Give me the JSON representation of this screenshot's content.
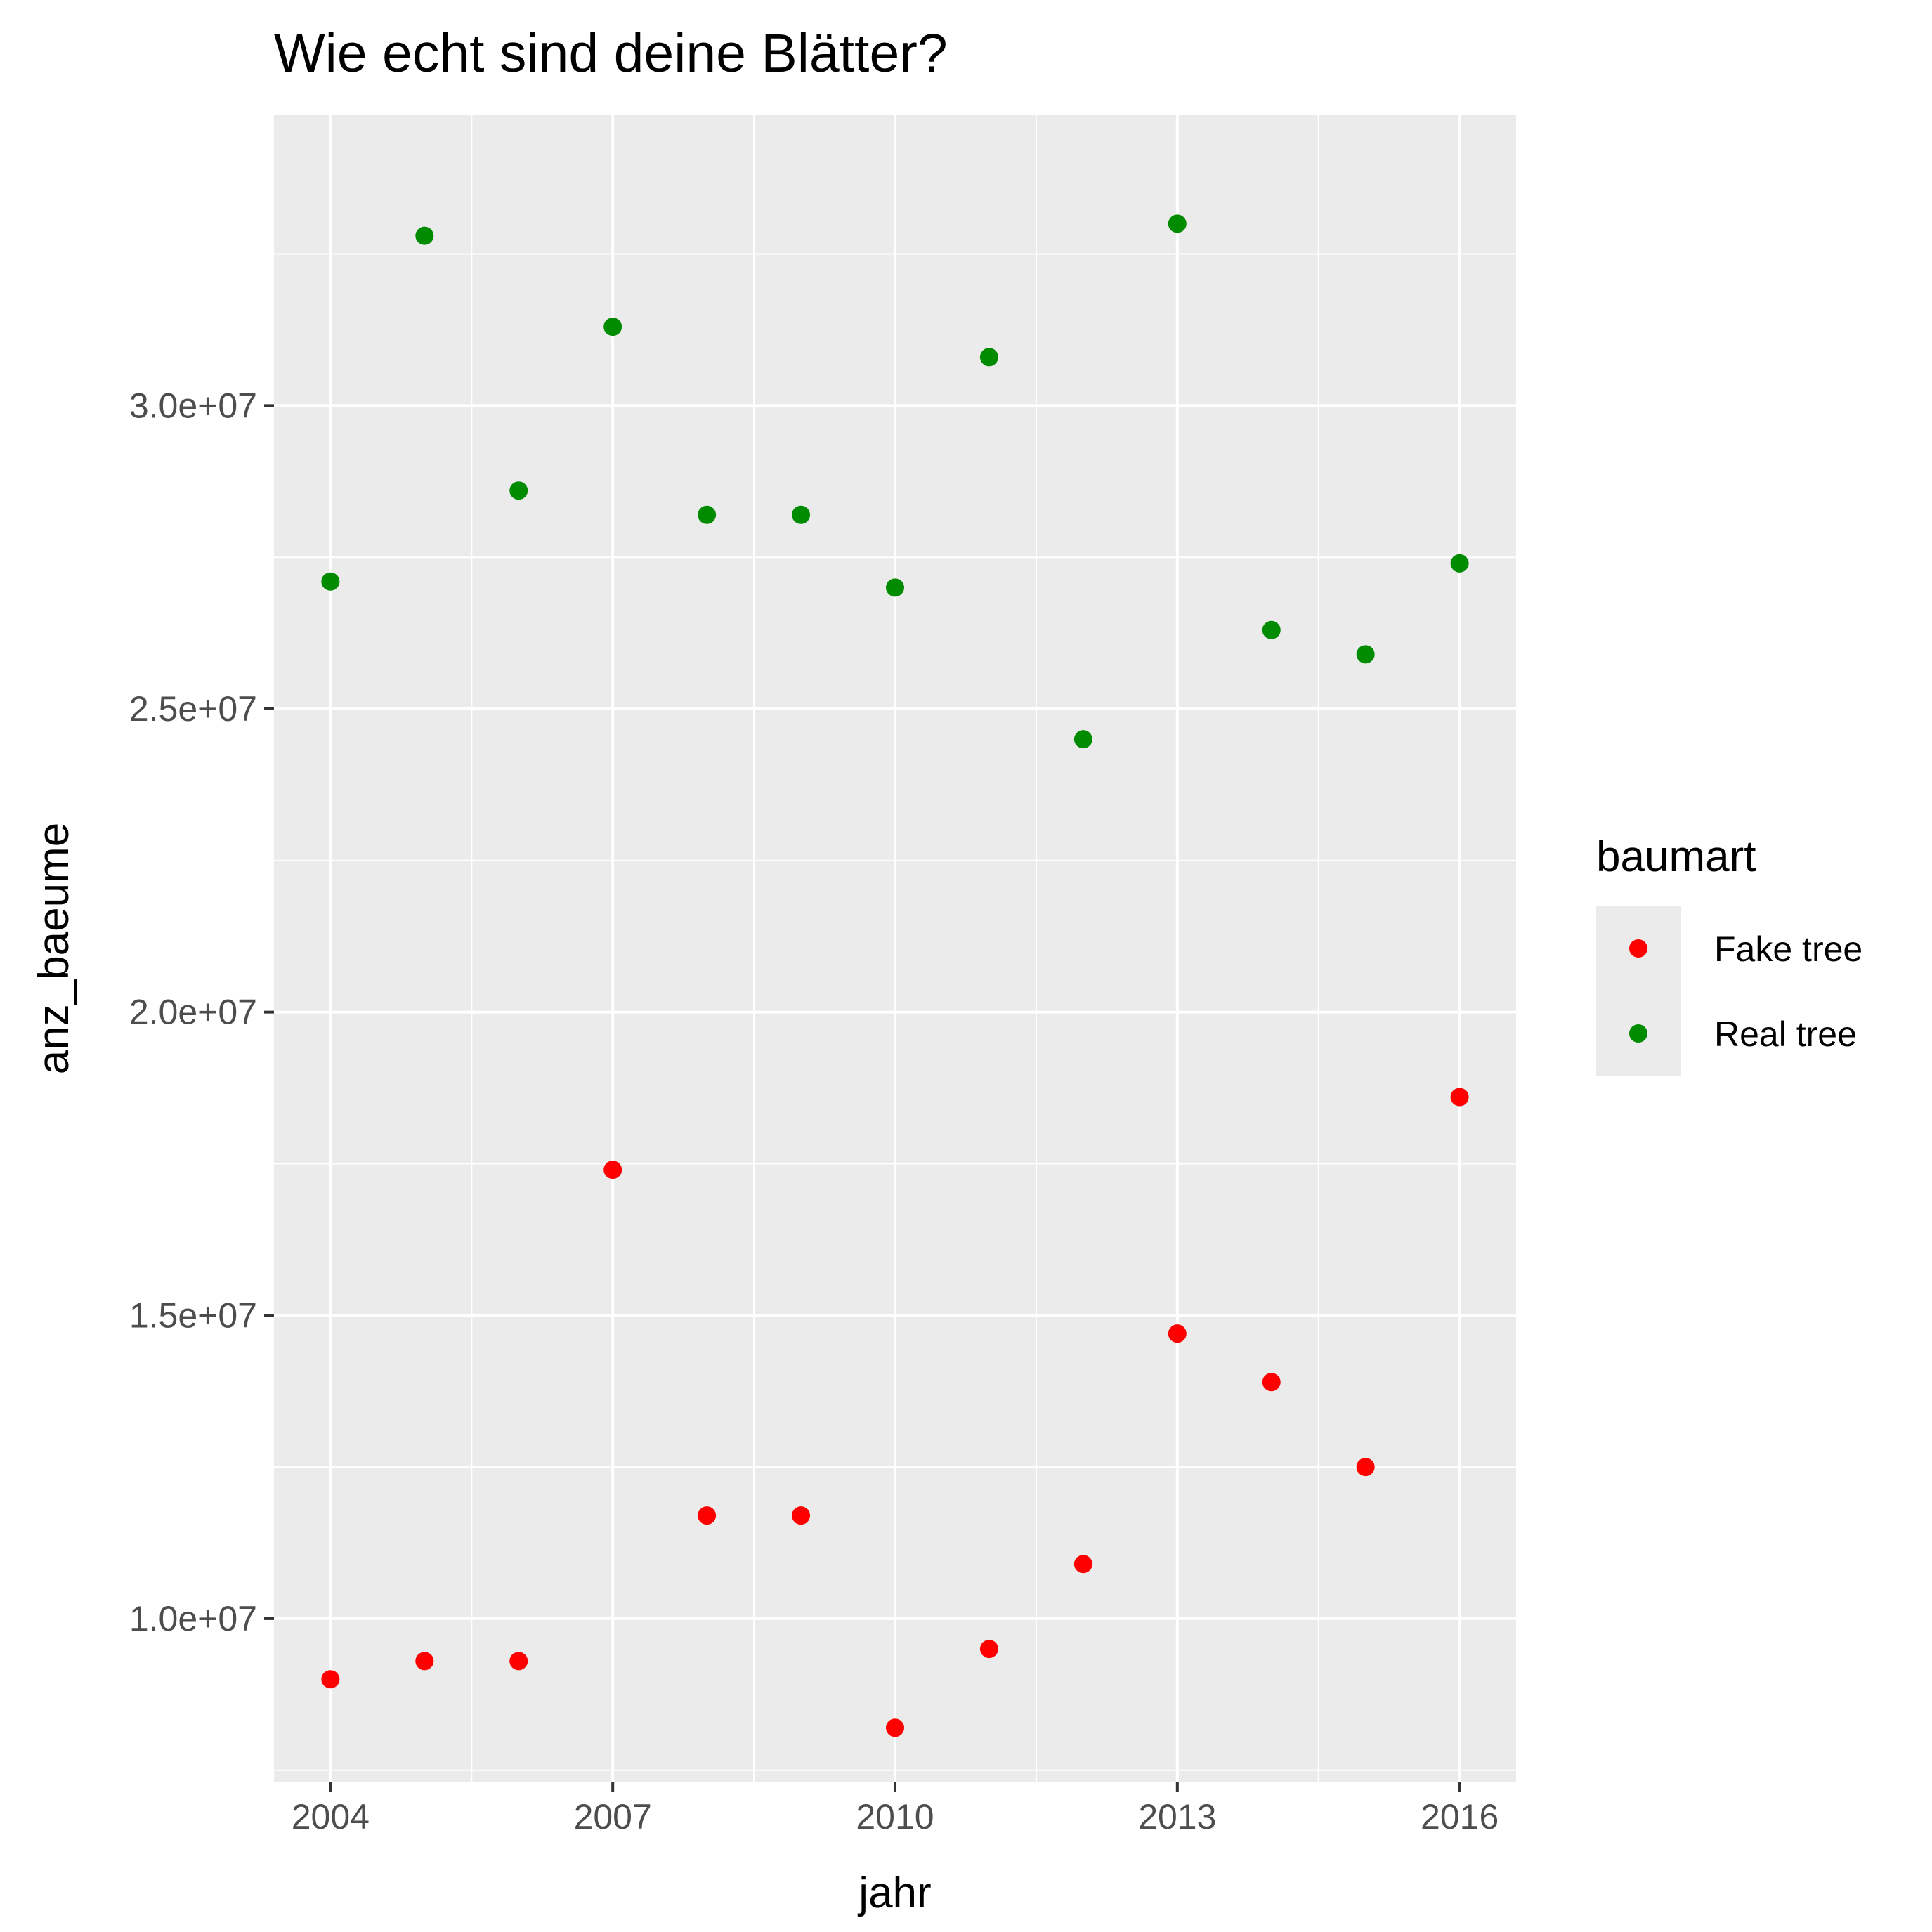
{
  "chart_data": {
    "type": "scatter",
    "title": "Wie echt sind deine Blätter?",
    "xlabel": "jahr",
    "ylabel": "anz_baeume",
    "xlim": [
      2003.4,
      2016.6
    ],
    "ylim": [
      7300000,
      34800000
    ],
    "x_ticks": [
      2004,
      2007,
      2010,
      2013,
      2016
    ],
    "x_tick_labels": [
      "2004",
      "2007",
      "2010",
      "2013",
      "2016"
    ],
    "y_ticks": [
      10000000,
      15000000,
      20000000,
      25000000,
      30000000
    ],
    "y_tick_labels": [
      "1.0e+07",
      "1.5e+07",
      "2.0e+07",
      "2.5e+07",
      "3.0e+07"
    ],
    "grid": true,
    "legend": {
      "title": "baumart",
      "position": "right"
    },
    "series": [
      {
        "name": "Fake tree",
        "color": "#ff0000",
        "x": [
          2004,
          2005,
          2006,
          2007,
          2008,
          2009,
          2010,
          2011,
          2012,
          2013,
          2014,
          2015,
          2016
        ],
        "y": [
          9000000,
          9300000,
          9300000,
          17400000,
          11700000,
          11700000,
          8200000,
          9500000,
          10900000,
          14700000,
          13900000,
          12500000,
          18600000
        ]
      },
      {
        "name": "Real tree",
        "color": "#008b00",
        "x": [
          2004,
          2005,
          2006,
          2007,
          2008,
          2009,
          2010,
          2011,
          2012,
          2013,
          2014,
          2015,
          2016
        ],
        "y": [
          27100000,
          32800000,
          28600000,
          31300000,
          28200000,
          28200000,
          27000000,
          30800000,
          24500000,
          33000000,
          26300000,
          25900000,
          27400000
        ]
      }
    ]
  }
}
